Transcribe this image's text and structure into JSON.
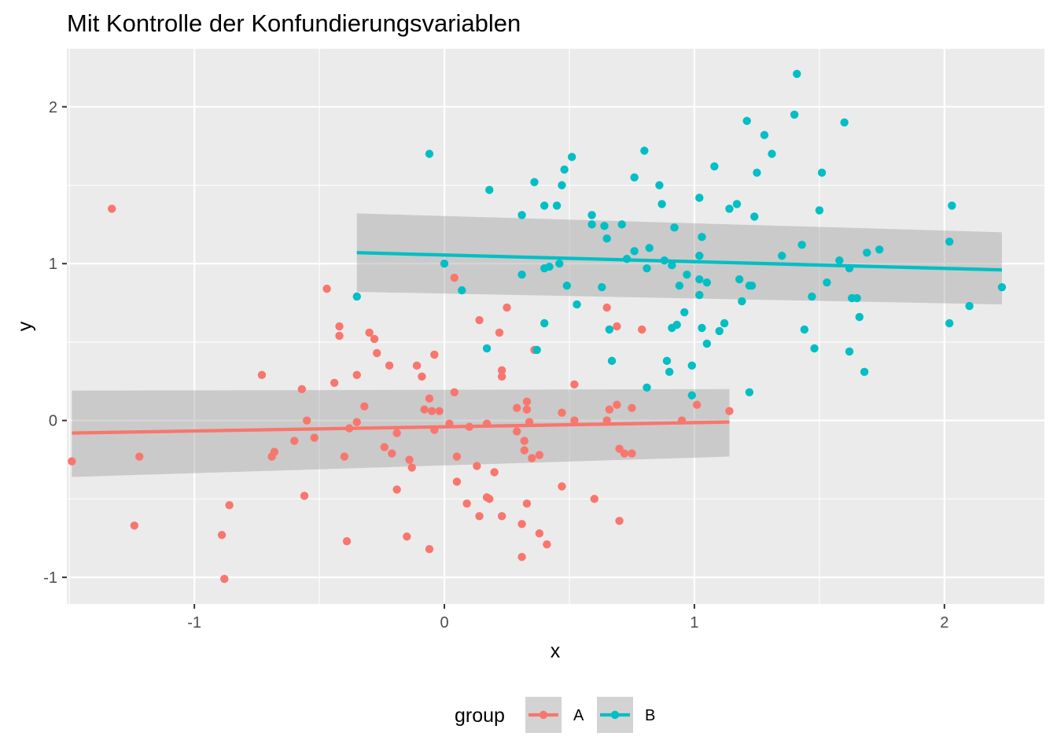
{
  "chart_data": {
    "type": "scatter",
    "title": "Mit Kontrolle der Konfundierungsvariablen",
    "xlabel": "x",
    "ylabel": "y",
    "xlim": [
      -1.51,
      2.4
    ],
    "ylim": [
      -1.17,
      2.37
    ],
    "x_ticks": [
      -1,
      0,
      1,
      2
    ],
    "x_tick_labels": [
      "-1",
      "0",
      "1",
      "2"
    ],
    "y_ticks": [
      -1,
      0,
      1,
      2
    ],
    "y_tick_labels": [
      "-1",
      "0",
      "1",
      "2"
    ],
    "grid": true,
    "legend": {
      "title": "group",
      "position": "bottom",
      "entries": [
        "A",
        "B"
      ]
    },
    "series": [
      {
        "name": "A",
        "color": "#F8766D",
        "fit": {
          "x": [
            -1.49,
            1.14
          ],
          "y": [
            -0.08,
            -0.01
          ],
          "ci_lower": [
            -0.36,
            -0.23
          ],
          "ci_upper": [
            0.19,
            0.2
          ]
        },
        "points": [
          [
            -1.49,
            -0.26
          ],
          [
            -1.33,
            1.35
          ],
          [
            -1.24,
            -0.67
          ],
          [
            -1.22,
            -0.23
          ],
          [
            -0.89,
            -0.73
          ],
          [
            -0.88,
            -1.01
          ],
          [
            -0.86,
            -0.54
          ],
          [
            -0.73,
            0.29
          ],
          [
            -0.69,
            -0.23
          ],
          [
            -0.68,
            -0.2
          ],
          [
            -0.6,
            -0.13
          ],
          [
            -0.57,
            0.2
          ],
          [
            -0.56,
            -0.48
          ],
          [
            -0.55,
            0.0
          ],
          [
            -0.52,
            -0.11
          ],
          [
            -0.47,
            0.84
          ],
          [
            -0.44,
            0.24
          ],
          [
            -0.42,
            0.6
          ],
          [
            -0.42,
            0.54
          ],
          [
            -0.4,
            -0.23
          ],
          [
            -0.39,
            -0.77
          ],
          [
            -0.38,
            -0.05
          ],
          [
            -0.35,
            0.29
          ],
          [
            -0.35,
            -0.01
          ],
          [
            -0.32,
            0.09
          ],
          [
            -0.3,
            0.56
          ],
          [
            -0.28,
            0.52
          ],
          [
            -0.27,
            0.43
          ],
          [
            -0.24,
            -0.17
          ],
          [
            -0.22,
            0.35
          ],
          [
            -0.21,
            -0.21
          ],
          [
            -0.19,
            -0.08
          ],
          [
            -0.19,
            -0.44
          ],
          [
            -0.15,
            -0.74
          ],
          [
            -0.14,
            -0.25
          ],
          [
            -0.13,
            -0.3
          ],
          [
            -0.11,
            0.35
          ],
          [
            -0.09,
            0.28
          ],
          [
            -0.08,
            0.07
          ],
          [
            -0.06,
            -0.82
          ],
          [
            -0.06,
            0.14
          ],
          [
            -0.05,
            0.06
          ],
          [
            -0.04,
            0.42
          ],
          [
            -0.04,
            -0.06
          ],
          [
            -0.02,
            0.06
          ],
          [
            0.02,
            -0.02
          ],
          [
            0.04,
            0.91
          ],
          [
            0.04,
            0.18
          ],
          [
            0.05,
            -0.23
          ],
          [
            0.05,
            -0.39
          ],
          [
            0.09,
            -0.53
          ],
          [
            0.1,
            -0.04
          ],
          [
            0.13,
            -0.29
          ],
          [
            0.14,
            -0.61
          ],
          [
            0.14,
            0.64
          ],
          [
            0.17,
            -0.02
          ],
          [
            0.17,
            -0.49
          ],
          [
            0.18,
            -0.5
          ],
          [
            0.2,
            -0.33
          ],
          [
            0.22,
            0.56
          ],
          [
            0.23,
            -0.61
          ],
          [
            0.23,
            0.28
          ],
          [
            0.23,
            0.32
          ],
          [
            0.25,
            0.72
          ],
          [
            0.29,
            -0.07
          ],
          [
            0.29,
            0.08
          ],
          [
            0.31,
            -0.66
          ],
          [
            0.31,
            -0.87
          ],
          [
            0.32,
            -0.19
          ],
          [
            0.32,
            -0.13
          ],
          [
            0.33,
            0.12
          ],
          [
            0.33,
            0.07
          ],
          [
            0.33,
            -0.53
          ],
          [
            0.34,
            -0.01
          ],
          [
            0.35,
            -0.24
          ],
          [
            0.36,
            0.45
          ],
          [
            0.38,
            -0.22
          ],
          [
            0.38,
            -0.72
          ],
          [
            0.41,
            -0.79
          ],
          [
            0.47,
            0.05
          ],
          [
            0.47,
            -0.42
          ],
          [
            0.52,
            0.0
          ],
          [
            0.52,
            0.23
          ],
          [
            0.6,
            -0.5
          ],
          [
            0.65,
            0.72
          ],
          [
            0.65,
            0.0
          ],
          [
            0.66,
            0.07
          ],
          [
            0.69,
            0.6
          ],
          [
            0.69,
            0.1
          ],
          [
            0.7,
            -0.64
          ],
          [
            0.7,
            -0.18
          ],
          [
            0.72,
            -0.21
          ],
          [
            0.75,
            -0.21
          ],
          [
            0.75,
            0.08
          ],
          [
            0.79,
            0.58
          ],
          [
            0.95,
            0.0
          ],
          [
            1.01,
            0.1
          ],
          [
            1.14,
            0.06
          ]
        ]
      },
      {
        "name": "B",
        "color": "#00BFC4",
        "fit": {
          "x": [
            -0.35,
            2.23
          ],
          "y": [
            1.07,
            0.96
          ],
          "ci_lower": [
            0.82,
            0.74
          ],
          "ci_upper": [
            1.32,
            1.2
          ]
        },
        "points": [
          [
            -0.35,
            0.79
          ],
          [
            -0.06,
            1.7
          ],
          [
            0.0,
            1.0
          ],
          [
            0.07,
            0.83
          ],
          [
            0.17,
            0.46
          ],
          [
            0.18,
            1.47
          ],
          [
            0.31,
            1.31
          ],
          [
            0.31,
            0.93
          ],
          [
            0.36,
            1.52
          ],
          [
            0.37,
            0.45
          ],
          [
            0.4,
            1.37
          ],
          [
            0.4,
            0.97
          ],
          [
            0.4,
            0.62
          ],
          [
            0.42,
            0.98
          ],
          [
            0.45,
            1.37
          ],
          [
            0.46,
            1.0
          ],
          [
            0.47,
            1.5
          ],
          [
            0.48,
            1.6
          ],
          [
            0.49,
            0.86
          ],
          [
            0.51,
            1.68
          ],
          [
            0.53,
            0.74
          ],
          [
            0.59,
            1.31
          ],
          [
            0.59,
            1.25
          ],
          [
            0.63,
            0.85
          ],
          [
            0.64,
            1.24
          ],
          [
            0.65,
            1.16
          ],
          [
            0.66,
            0.58
          ],
          [
            0.67,
            0.38
          ],
          [
            0.71,
            1.25
          ],
          [
            0.73,
            1.03
          ],
          [
            0.76,
            1.55
          ],
          [
            0.76,
            1.08
          ],
          [
            0.8,
            1.72
          ],
          [
            0.81,
            0.97
          ],
          [
            0.81,
            0.21
          ],
          [
            0.82,
            1.1
          ],
          [
            0.86,
            1.5
          ],
          [
            0.87,
            1.38
          ],
          [
            0.88,
            1.02
          ],
          [
            0.89,
            0.38
          ],
          [
            0.9,
            0.31
          ],
          [
            0.91,
            0.99
          ],
          [
            0.91,
            0.59
          ],
          [
            0.92,
            1.23
          ],
          [
            0.93,
            0.61
          ],
          [
            0.94,
            0.86
          ],
          [
            0.96,
            0.69
          ],
          [
            0.97,
            0.93
          ],
          [
            0.99,
            0.16
          ],
          [
            0.99,
            0.35
          ],
          [
            1.02,
            0.9
          ],
          [
            1.02,
            0.8
          ],
          [
            1.02,
            1.42
          ],
          [
            1.02,
            1.05
          ],
          [
            1.03,
            0.59
          ],
          [
            1.03,
            1.17
          ],
          [
            1.05,
            0.88
          ],
          [
            1.05,
            0.49
          ],
          [
            1.08,
            1.62
          ],
          [
            1.1,
            0.57
          ],
          [
            1.12,
            0.62
          ],
          [
            1.14,
            1.35
          ],
          [
            1.17,
            1.38
          ],
          [
            1.18,
            0.9
          ],
          [
            1.19,
            0.76
          ],
          [
            1.21,
            1.91
          ],
          [
            1.22,
            0.18
          ],
          [
            1.22,
            0.86
          ],
          [
            1.23,
            0.86
          ],
          [
            1.24,
            1.3
          ],
          [
            1.25,
            1.58
          ],
          [
            1.28,
            1.82
          ],
          [
            1.31,
            1.7
          ],
          [
            1.35,
            1.05
          ],
          [
            1.4,
            1.95
          ],
          [
            1.41,
            2.21
          ],
          [
            1.43,
            1.12
          ],
          [
            1.44,
            0.58
          ],
          [
            1.47,
            0.79
          ],
          [
            1.48,
            0.46
          ],
          [
            1.5,
            1.34
          ],
          [
            1.51,
            1.58
          ],
          [
            1.53,
            0.88
          ],
          [
            1.58,
            1.02
          ],
          [
            1.6,
            1.9
          ],
          [
            1.62,
            0.97
          ],
          [
            1.62,
            0.44
          ],
          [
            1.63,
            0.78
          ],
          [
            1.65,
            0.78
          ],
          [
            1.66,
            0.66
          ],
          [
            1.68,
            0.31
          ],
          [
            1.69,
            1.07
          ],
          [
            1.74,
            1.09
          ],
          [
            2.02,
            0.62
          ],
          [
            2.02,
            1.14
          ],
          [
            2.03,
            1.37
          ],
          [
            2.1,
            0.73
          ],
          [
            2.23,
            0.85
          ]
        ]
      }
    ]
  }
}
